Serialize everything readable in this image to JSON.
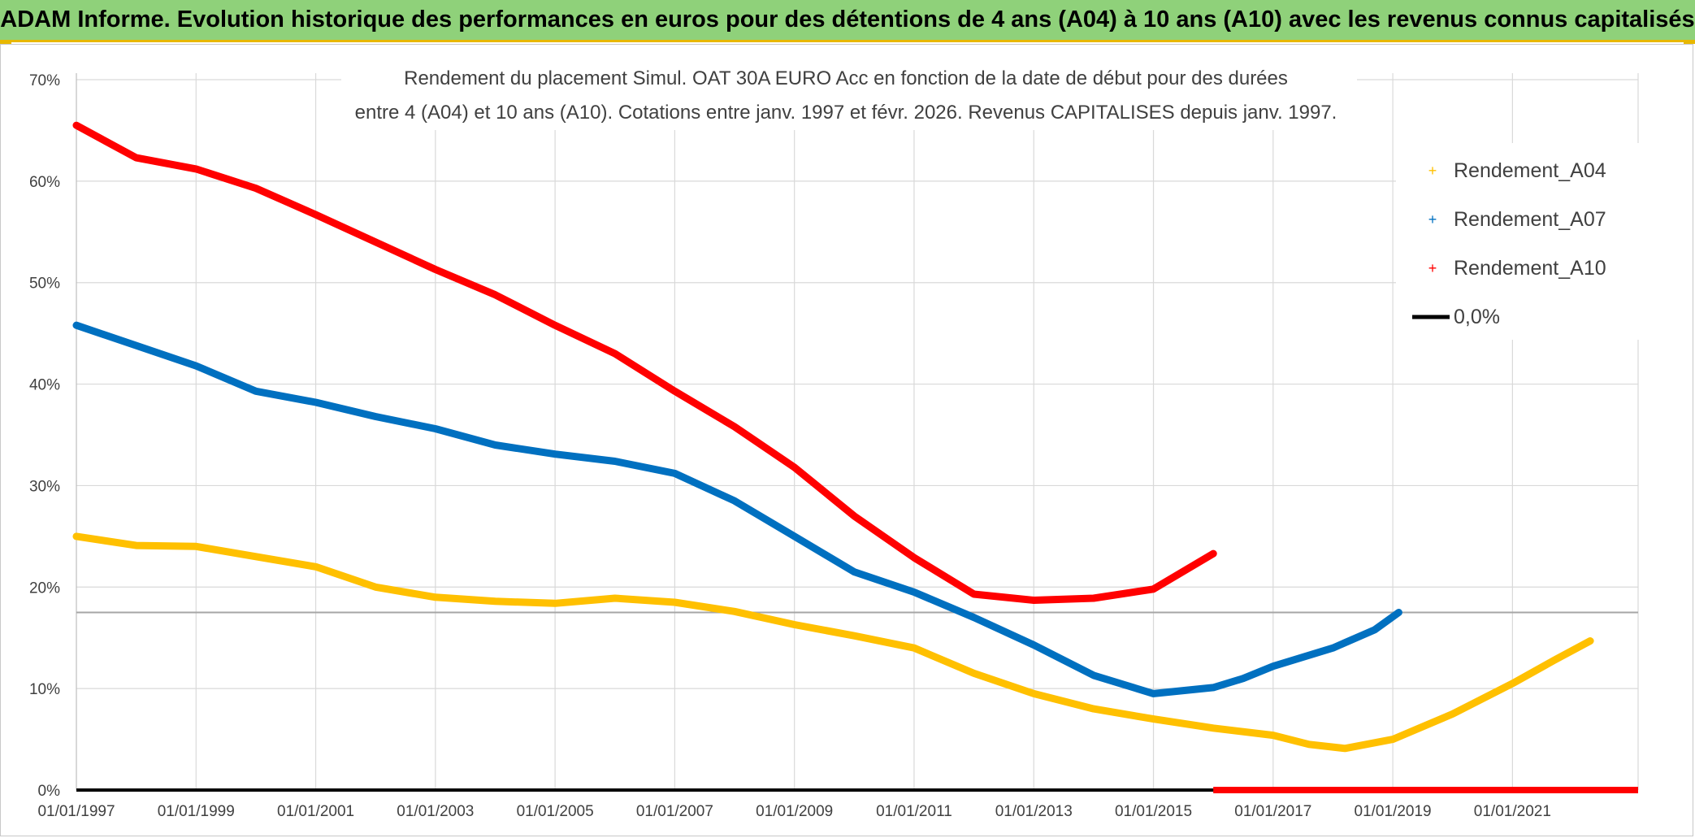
{
  "header": {
    "title": "ADAM Informe. Evolution historique des performances en euros pour des détentions de 4 ans (A04) à 10 ans (A10) avec les revenus connus capitalisés"
  },
  "chart_data": {
    "type": "line",
    "title_line1": "Rendement du placement Simul. OAT 30A EURO Acc en fonction de la date de début pour des durées",
    "title_line2": "entre 4 (A04) et 10 ans (A10). Cotations entre janv. 1997 et févr. 2026. Revenus CAPITALISES depuis janv. 1997.",
    "x_ticks": [
      "01/01/1997",
      "01/01/1999",
      "01/01/2001",
      "01/01/2003",
      "01/01/2005",
      "01/01/2007",
      "01/01/2009",
      "01/01/2011",
      "01/01/2013",
      "01/01/2015",
      "01/01/2017",
      "01/01/2019",
      "01/01/2021"
    ],
    "y_ticks": [
      "0%",
      "10%",
      "20%",
      "30%",
      "40%",
      "50%",
      "60%",
      "70%"
    ],
    "xlim": [
      1997.0,
      2023.1
    ],
    "ylim": [
      0,
      70
    ],
    "series": [
      {
        "name": "Rendement_A04",
        "color": "#ffc000",
        "points": [
          [
            1997.0,
            25.0
          ],
          [
            1998.0,
            24.1
          ],
          [
            1999.0,
            24.0
          ],
          [
            2000.0,
            23.0
          ],
          [
            2001.0,
            22.0
          ],
          [
            2002.0,
            20.0
          ],
          [
            2003.0,
            19.0
          ],
          [
            2004.0,
            18.6
          ],
          [
            2005.0,
            18.4
          ],
          [
            2006.0,
            18.9
          ],
          [
            2007.0,
            18.5
          ],
          [
            2008.0,
            17.6
          ],
          [
            2009.0,
            16.3
          ],
          [
            2010.0,
            15.2
          ],
          [
            2011.0,
            14.0
          ],
          [
            2012.0,
            11.5
          ],
          [
            2013.0,
            9.5
          ],
          [
            2014.0,
            8.0
          ],
          [
            2015.0,
            7.0
          ],
          [
            2016.0,
            6.1
          ],
          [
            2017.0,
            5.4
          ],
          [
            2017.6,
            4.5
          ],
          [
            2018.2,
            4.1
          ],
          [
            2019.0,
            5.0
          ],
          [
            2020.0,
            7.5
          ],
          [
            2021.0,
            10.5
          ],
          [
            2021.7,
            12.8
          ],
          [
            2022.3,
            14.7
          ]
        ]
      },
      {
        "name": "Rendement_A07",
        "color": "#0070c0",
        "points": [
          [
            1997.0,
            45.8
          ],
          [
            1998.0,
            43.8
          ],
          [
            1999.0,
            41.8
          ],
          [
            2000.0,
            39.3
          ],
          [
            2001.0,
            38.2
          ],
          [
            2002.0,
            36.8
          ],
          [
            2003.0,
            35.6
          ],
          [
            2004.0,
            34.0
          ],
          [
            2005.0,
            33.1
          ],
          [
            2006.0,
            32.4
          ],
          [
            2007.0,
            31.2
          ],
          [
            2008.0,
            28.5
          ],
          [
            2009.0,
            25.0
          ],
          [
            2010.0,
            21.5
          ],
          [
            2011.0,
            19.5
          ],
          [
            2012.0,
            17.0
          ],
          [
            2013.0,
            14.3
          ],
          [
            2014.0,
            11.3
          ],
          [
            2015.0,
            9.5
          ],
          [
            2016.0,
            10.1
          ],
          [
            2016.5,
            11.0
          ],
          [
            2017.0,
            12.2
          ],
          [
            2018.0,
            14.0
          ],
          [
            2018.7,
            15.8
          ],
          [
            2019.1,
            17.5
          ]
        ]
      },
      {
        "name": "Rendement_A10",
        "color": "#ff0000",
        "points": [
          [
            1997.0,
            65.5
          ],
          [
            1998.0,
            62.3
          ],
          [
            1999.0,
            61.2
          ],
          [
            2000.0,
            59.3
          ],
          [
            2001.0,
            56.7
          ],
          [
            2002.0,
            54.0
          ],
          [
            2003.0,
            51.3
          ],
          [
            2004.0,
            48.8
          ],
          [
            2005.0,
            45.8
          ],
          [
            2006.0,
            43.0
          ],
          [
            2007.0,
            39.3
          ],
          [
            2008.0,
            35.8
          ],
          [
            2009.0,
            31.8
          ],
          [
            2010.0,
            27.0
          ],
          [
            2011.0,
            22.9
          ],
          [
            2012.0,
            19.3
          ],
          [
            2013.0,
            18.7
          ],
          [
            2014.0,
            18.9
          ],
          [
            2015.0,
            19.8
          ],
          [
            2016.0,
            23.3
          ]
        ],
        "zero_segment": [
          2016.0,
          2023.1
        ]
      }
    ],
    "reference_line": {
      "name": "0,0%",
      "value": 0,
      "color": "#000000"
    },
    "gray_hline": 17.5,
    "legend_position": "top-right"
  }
}
